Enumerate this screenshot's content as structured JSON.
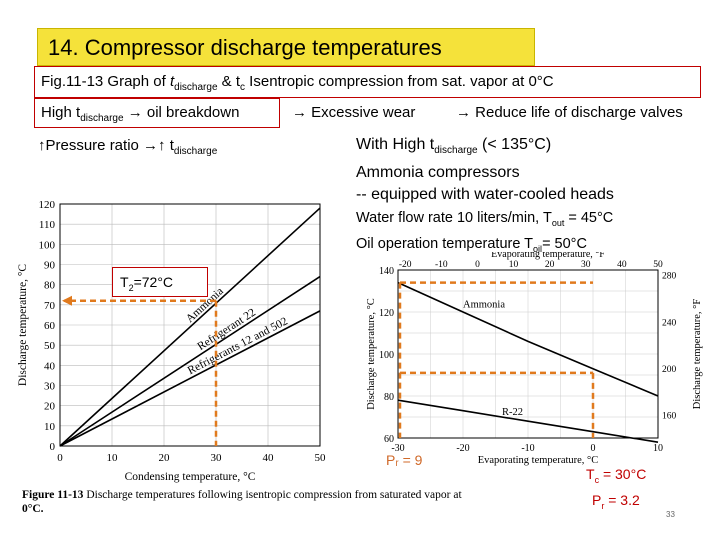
{
  "slide": {
    "title": "14. Compressor discharge temperatures",
    "fig_line": {
      "prefix": "Fig.11-13 Graph of ",
      "t": "t",
      "sub": "discharge",
      "mid": " & t",
      "sub2": "c",
      "suffix": "   Isentropic compression from sat. vapor at 0°C"
    },
    "high_line": {
      "text": "High t",
      "sub": "discharge",
      "arrow": "→",
      "tail": " oil breakdown"
    },
    "excessive": "→ Excessive wear",
    "reduce": "→ Reduce life of discharge valves",
    "pressure": {
      "up": "↑",
      "text": "Pressure ratio ",
      "arrow": "→↑ t",
      "sub": "discharge"
    },
    "with_high": {
      "l1a": "With High t",
      "l1sub": "discharge",
      "l1b": " (< 135°C)",
      "l2": "Ammonia compressors",
      "l3": "-- equipped with water-cooled heads"
    },
    "water": {
      "l1a": "Water flow rate 10 liters/min, T",
      "l1sub": "out",
      "l1b": " = 45°C",
      "l2a": "Oil operation temperature T",
      "l2sub": "oil",
      "l2b": "= 50°C"
    },
    "t2": {
      "a": "T",
      "sub": "2",
      "b": "=72°C"
    },
    "pr9": "Pᵣ = 9",
    "tc": {
      "a": "T",
      "sub": "c",
      "b": " = 30°C"
    },
    "pr": {
      "a": "P",
      "sub": "r",
      "b": " = 3.2"
    },
    "page_num": "33",
    "caption": {
      "bold": "Figure 11-13",
      "text": "  Discharge  temperatures  following  isentropic  compression  from  saturated  vapor  at",
      "text2": "0°C."
    },
    "colors": {
      "accent": "#c00000",
      "title_bg": "#f5e23a",
      "annotation": "#e07a1e"
    }
  },
  "chart_data": [
    {
      "type": "line",
      "title": "",
      "xlabel": "Condensing temperature, °C",
      "ylabel": "Discharge temperature, °C",
      "xlim": [
        0,
        50
      ],
      "ylim": [
        0,
        120
      ],
      "x_ticks": [
        "0",
        "10",
        "20",
        "30",
        "40",
        "50"
      ],
      "y_ticks": [
        "0",
        "10",
        "20",
        "30",
        "40",
        "50",
        "60",
        "70",
        "80",
        "90",
        "100",
        "110",
        "120"
      ],
      "series": [
        {
          "name": "Ammonia",
          "x": [
            0,
            50
          ],
          "y": [
            0,
            118
          ]
        },
        {
          "name": "Refrigerant 22",
          "x": [
            0,
            50
          ],
          "y": [
            0,
            84
          ]
        },
        {
          "name": "Refrigerants 12 and 502",
          "x": [
            0,
            50
          ],
          "y": [
            0,
            67
          ]
        }
      ],
      "annotation": {
        "x": 30,
        "y": 72,
        "label": "T2=72°C"
      },
      "grid": true
    },
    {
      "type": "line",
      "title": "",
      "xlabel": "Evaporating temperature, °C",
      "ylabel": "Discharge temperature, °C",
      "xlabel_top": "Evaporating temperature, °F",
      "ylabel_right": "Discharge temperature, °F",
      "xlim": [
        -30,
        10
      ],
      "ylim": [
        60,
        140
      ],
      "x_ticks": [
        "-30",
        "-20",
        "-10",
        "0",
        "10"
      ],
      "x_ticks_top": [
        "-20",
        "-10",
        "0",
        "10",
        "20",
        "30",
        "40",
        "50"
      ],
      "y_ticks": [
        "60",
        "80",
        "100",
        "120",
        "140"
      ],
      "y_ticks_right": [
        "160",
        "200",
        "240",
        "280"
      ],
      "series": [
        {
          "name": "Ammonia",
          "x": [
            -30,
            -20,
            -10,
            0,
            10
          ],
          "y": [
            134,
            120,
            106,
            93,
            80
          ]
        },
        {
          "name": "R-22",
          "x": [
            -30,
            -20,
            -10,
            0,
            10
          ],
          "y": [
            78,
            73,
            68,
            63,
            58
          ]
        }
      ],
      "grid": true
    }
  ]
}
